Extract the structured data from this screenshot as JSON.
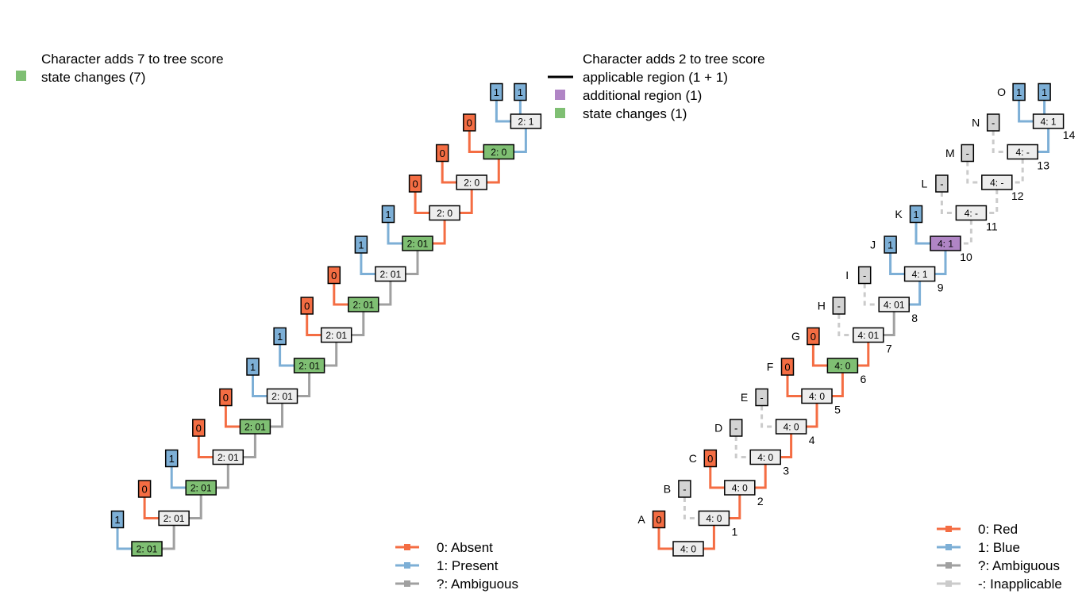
{
  "colors": {
    "absent": "#F46D43",
    "present": "#7DAFD6",
    "ambiguous": "#A0A0A0",
    "inapplicable": "#CBCBCB",
    "changed": "#7FBF73",
    "additional": "#B085C5",
    "nodeFill": "#EDEDED",
    "inappTip": "#D3D3D3"
  },
  "left": {
    "title": "Character adds 7 to tree score",
    "legend_changes": "state changes (7)",
    "legend": [
      {
        "label": "0: Absent",
        "color": "absent"
      },
      {
        "label": "1: Present",
        "color": "present"
      },
      {
        "label": "?: Ambiguous",
        "color": "ambiguous"
      }
    ],
    "tips": [
      "1",
      "0",
      "1",
      "0",
      "0",
      "1",
      "1",
      "0",
      "0",
      "1",
      "1",
      "0",
      "0",
      "0",
      "1",
      "1"
    ],
    "nodes": [
      {
        "label": "2: 01",
        "changed": true,
        "edge": "ambiguous"
      },
      {
        "label": "2: 01",
        "changed": false,
        "edge": "ambiguous"
      },
      {
        "label": "2: 01",
        "changed": true,
        "edge": "ambiguous"
      },
      {
        "label": "2: 01",
        "changed": false,
        "edge": "ambiguous"
      },
      {
        "label": "2: 01",
        "changed": true,
        "edge": "ambiguous"
      },
      {
        "label": "2: 01",
        "changed": false,
        "edge": "ambiguous"
      },
      {
        "label": "2: 01",
        "changed": true,
        "edge": "ambiguous"
      },
      {
        "label": "2: 01",
        "changed": false,
        "edge": "ambiguous"
      },
      {
        "label": "2: 01",
        "changed": true,
        "edge": "ambiguous"
      },
      {
        "label": "2: 01",
        "changed": false,
        "edge": "ambiguous"
      },
      {
        "label": "2: 01",
        "changed": true,
        "edge": "absent"
      },
      {
        "label": "2: 0",
        "changed": false,
        "edge": "absent"
      },
      {
        "label": "2: 0",
        "changed": false,
        "edge": "absent"
      },
      {
        "label": "2: 0",
        "changed": true,
        "edge": "present"
      },
      {
        "label": "2: 1",
        "changed": false,
        "edge": "present"
      }
    ]
  },
  "right": {
    "title": "Character adds 2 to tree score",
    "legend_applicable": "applicable region (1 + 1)",
    "legend_additional": "additional region (1)",
    "legend_changes": "state changes (1)",
    "legend": [
      {
        "label": "0: Red",
        "color": "absent"
      },
      {
        "label": "1: Blue",
        "color": "present"
      },
      {
        "label": "?: Ambiguous",
        "color": "ambiguous"
      },
      {
        "label": "-: Inapplicable",
        "color": "inapplicable"
      }
    ],
    "taxa": [
      "A",
      "B",
      "C",
      "D",
      "E",
      "F",
      "G",
      "H",
      "I",
      "J",
      "K",
      "L",
      "M",
      "N",
      "O",
      ""
    ],
    "tips": [
      "0",
      "-",
      "0",
      "-",
      "-",
      "0",
      "0",
      "-",
      "-",
      "1",
      "1",
      "-",
      "-",
      "-",
      "1",
      "1"
    ],
    "nodes": [
      {
        "label": "4: 0",
        "num": "",
        "type": "plain",
        "edge": "absent"
      },
      {
        "label": "4: 0",
        "num": "1",
        "type": "plain",
        "edge": "absent"
      },
      {
        "label": "4: 0",
        "num": "2",
        "type": "plain",
        "edge": "absent"
      },
      {
        "label": "4: 0",
        "num": "3",
        "type": "plain",
        "edge": "absent"
      },
      {
        "label": "4: 0",
        "num": "4",
        "type": "plain",
        "edge": "absent"
      },
      {
        "label": "4: 0",
        "num": "5",
        "type": "plain",
        "edge": "absent"
      },
      {
        "label": "4: 0",
        "num": "6",
        "type": "changed",
        "edge": "absent"
      },
      {
        "label": "4: 01",
        "num": "7",
        "type": "plain",
        "edge": "ambiguous"
      },
      {
        "label": "4: 01",
        "num": "8",
        "type": "plain",
        "edge": "present"
      },
      {
        "label": "4: 1",
        "num": "9",
        "type": "plain",
        "edge": "present"
      },
      {
        "label": "4: 1",
        "num": "10",
        "type": "additional",
        "edge": "inapplicable"
      },
      {
        "label": "4: -",
        "num": "11",
        "type": "plain",
        "edge": "inapplicable"
      },
      {
        "label": "4: -",
        "num": "12",
        "type": "plain",
        "edge": "inapplicable"
      },
      {
        "label": "4: -",
        "num": "13",
        "type": "plain",
        "edge": "present"
      },
      {
        "label": "4: 1",
        "num": "14",
        "type": "plain",
        "edge": "present"
      }
    ]
  }
}
